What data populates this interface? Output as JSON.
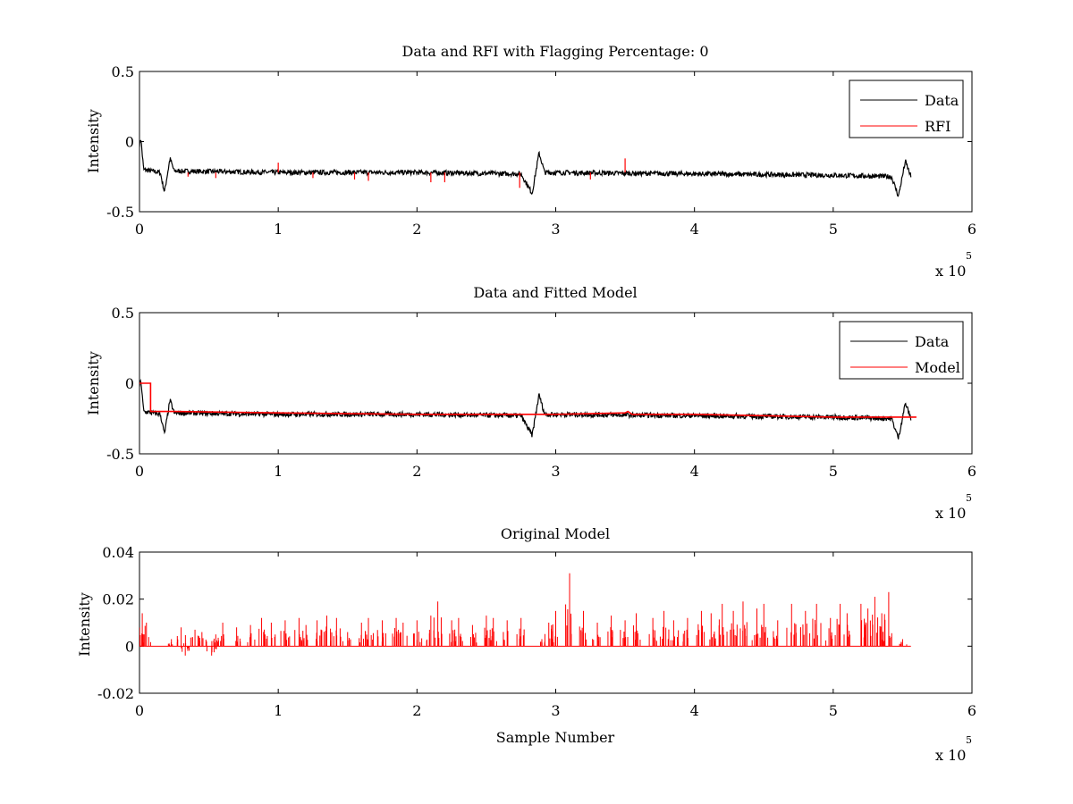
{
  "chart_data": [
    {
      "type": "line",
      "title": "Data and RFI with Flagging Percentage: 0",
      "xlabel": "",
      "ylabel": "Intensity",
      "xlim": [
        0,
        6
      ],
      "ylim": [
        -0.5,
        0.5
      ],
      "x_ticks": [
        "0",
        "1",
        "2",
        "3",
        "4",
        "5",
        "6"
      ],
      "y_ticks": [
        "0.5",
        "0",
        "-0.5"
      ],
      "x_multiplier": "x 10",
      "x_multiplier_exponent": "5",
      "legend_position": "top-right",
      "series": [
        {
          "name": "Data",
          "color": "#000000",
          "baseline": [
            [
              0,
              -0.02
            ],
            [
              0.01,
              0.02
            ],
            [
              0.03,
              -0.2
            ],
            [
              0.15,
              -0.22
            ],
            [
              0.18,
              -0.36
            ],
            [
              0.22,
              -0.12
            ],
            [
              0.25,
              -0.21
            ],
            [
              1.0,
              -0.22
            ],
            [
              2.0,
              -0.22
            ],
            [
              2.75,
              -0.23
            ],
            [
              2.83,
              -0.37
            ],
            [
              2.88,
              -0.08
            ],
            [
              2.92,
              -0.22
            ],
            [
              4.0,
              -0.23
            ],
            [
              5.0,
              -0.24
            ],
            [
              5.42,
              -0.25
            ],
            [
              5.47,
              -0.39
            ],
            [
              5.52,
              -0.14
            ],
            [
              5.56,
              -0.25
            ]
          ]
        },
        {
          "name": "RFI",
          "color": "#ff0000",
          "spikes": [
            [
              0.35,
              -0.25
            ],
            [
              0.55,
              -0.26
            ],
            [
              1.0,
              -0.15
            ],
            [
              1.25,
              -0.26
            ],
            [
              1.55,
              -0.27
            ],
            [
              1.65,
              -0.28
            ],
            [
              2.1,
              -0.29
            ],
            [
              2.2,
              -0.29
            ],
            [
              2.74,
              -0.33
            ],
            [
              3.25,
              -0.27
            ],
            [
              3.5,
              -0.12
            ]
          ]
        }
      ]
    },
    {
      "type": "line",
      "title": "Data and Fitted Model",
      "xlabel": "",
      "ylabel": "Intensity",
      "xlim": [
        0,
        6
      ],
      "ylim": [
        -0.5,
        0.5
      ],
      "x_ticks": [
        "0",
        "1",
        "2",
        "3",
        "4",
        "5",
        "6"
      ],
      "y_ticks": [
        "0.5",
        "0",
        "-0.5"
      ],
      "x_multiplier": "x 10",
      "x_multiplier_exponent": "5",
      "legend_position": "top-right",
      "series": [
        {
          "name": "Data",
          "color": "#000000",
          "baseline": [
            [
              0,
              -0.02
            ],
            [
              0.01,
              0.02
            ],
            [
              0.03,
              -0.2
            ],
            [
              0.15,
              -0.22
            ],
            [
              0.18,
              -0.36
            ],
            [
              0.22,
              -0.12
            ],
            [
              0.25,
              -0.21
            ],
            [
              1.0,
              -0.22
            ],
            [
              2.0,
              -0.22
            ],
            [
              2.75,
              -0.23
            ],
            [
              2.83,
              -0.37
            ],
            [
              2.88,
              -0.08
            ],
            [
              2.92,
              -0.22
            ],
            [
              4.0,
              -0.23
            ],
            [
              5.0,
              -0.24
            ],
            [
              5.42,
              -0.25
            ],
            [
              5.47,
              -0.39
            ],
            [
              5.52,
              -0.14
            ],
            [
              5.56,
              -0.25
            ]
          ]
        },
        {
          "name": "Model",
          "color": "#ff0000",
          "points": [
            [
              0,
              0.0
            ],
            [
              0.08,
              0.0
            ],
            [
              0.08,
              -0.2
            ],
            [
              0.25,
              -0.2
            ],
            [
              1.0,
              -0.21
            ],
            [
              2.0,
              -0.22
            ],
            [
              3.0,
              -0.22
            ],
            [
              3.5,
              -0.21
            ],
            [
              3.52,
              -0.2
            ],
            [
              3.55,
              -0.22
            ],
            [
              4.0,
              -0.22
            ],
            [
              5.0,
              -0.24
            ],
            [
              5.6,
              -0.24
            ]
          ]
        }
      ]
    },
    {
      "type": "line",
      "title": "Original Model",
      "xlabel": "Sample Number",
      "ylabel": "Intensity",
      "xlim": [
        0,
        6
      ],
      "ylim": [
        -0.02,
        0.04
      ],
      "x_ticks": [
        "0",
        "1",
        "2",
        "3",
        "4",
        "5",
        "6"
      ],
      "y_ticks": [
        "0.04",
        "0.02",
        "0",
        "-0.02"
      ],
      "x_multiplier": "x 10",
      "x_multiplier_exponent": "5",
      "series": [
        {
          "name": "",
          "color": "#ff0000",
          "spikes": [
            [
              0.02,
              0.014
            ],
            [
              0.05,
              0.01
            ],
            [
              0.23,
              0.003
            ],
            [
              0.3,
              0.008
            ],
            [
              0.33,
              -0.004
            ],
            [
              0.4,
              0.007
            ],
            [
              0.45,
              0.006
            ],
            [
              0.52,
              -0.004
            ],
            [
              0.55,
              0.005
            ],
            [
              0.6,
              0.01
            ],
            [
              0.7,
              0.008
            ],
            [
              0.8,
              0.009
            ],
            [
              0.88,
              0.012
            ],
            [
              0.95,
              0.01
            ],
            [
              1.05,
              0.011
            ],
            [
              1.15,
              0.012
            ],
            [
              1.2,
              0.009
            ],
            [
              1.28,
              0.011
            ],
            [
              1.35,
              0.013
            ],
            [
              1.42,
              0.012
            ],
            [
              1.5,
              0.006
            ],
            [
              1.6,
              0.01
            ],
            [
              1.65,
              0.012
            ],
            [
              1.75,
              0.011
            ],
            [
              1.85,
              0.012
            ],
            [
              1.9,
              0.01
            ],
            [
              2.0,
              0.011
            ],
            [
              2.1,
              0.013
            ],
            [
              2.15,
              0.019
            ],
            [
              2.25,
              0.011
            ],
            [
              2.3,
              0.012
            ],
            [
              2.4,
              0.009
            ],
            [
              2.5,
              0.013
            ],
            [
              2.55,
              0.012
            ],
            [
              2.65,
              0.011
            ],
            [
              2.75,
              0.012
            ],
            [
              2.9,
              0.003
            ],
            [
              2.95,
              0.01
            ],
            [
              3.0,
              0.015
            ],
            [
              3.1,
              0.031
            ],
            [
              3.2,
              0.015
            ],
            [
              3.3,
              0.01
            ],
            [
              3.4,
              0.013
            ],
            [
              3.5,
              0.011
            ],
            [
              3.58,
              0.014
            ],
            [
              3.7,
              0.012
            ],
            [
              3.78,
              0.015
            ],
            [
              3.85,
              0.011
            ],
            [
              3.95,
              0.012
            ],
            [
              4.05,
              0.015
            ],
            [
              4.12,
              0.014
            ],
            [
              4.2,
              0.018
            ],
            [
              4.28,
              0.015
            ],
            [
              4.35,
              0.019
            ],
            [
              4.45,
              0.016
            ],
            [
              4.5,
              0.018
            ],
            [
              4.6,
              0.011
            ],
            [
              4.7,
              0.018
            ],
            [
              4.8,
              0.015
            ],
            [
              4.88,
              0.018
            ],
            [
              4.98,
              0.012
            ],
            [
              5.05,
              0.018
            ],
            [
              5.1,
              0.014
            ],
            [
              5.2,
              0.018
            ],
            [
              5.25,
              0.016
            ],
            [
              5.3,
              0.021
            ],
            [
              5.35,
              0.014
            ],
            [
              5.4,
              0.023
            ],
            [
              5.5,
              0.003
            ]
          ]
        }
      ]
    }
  ]
}
